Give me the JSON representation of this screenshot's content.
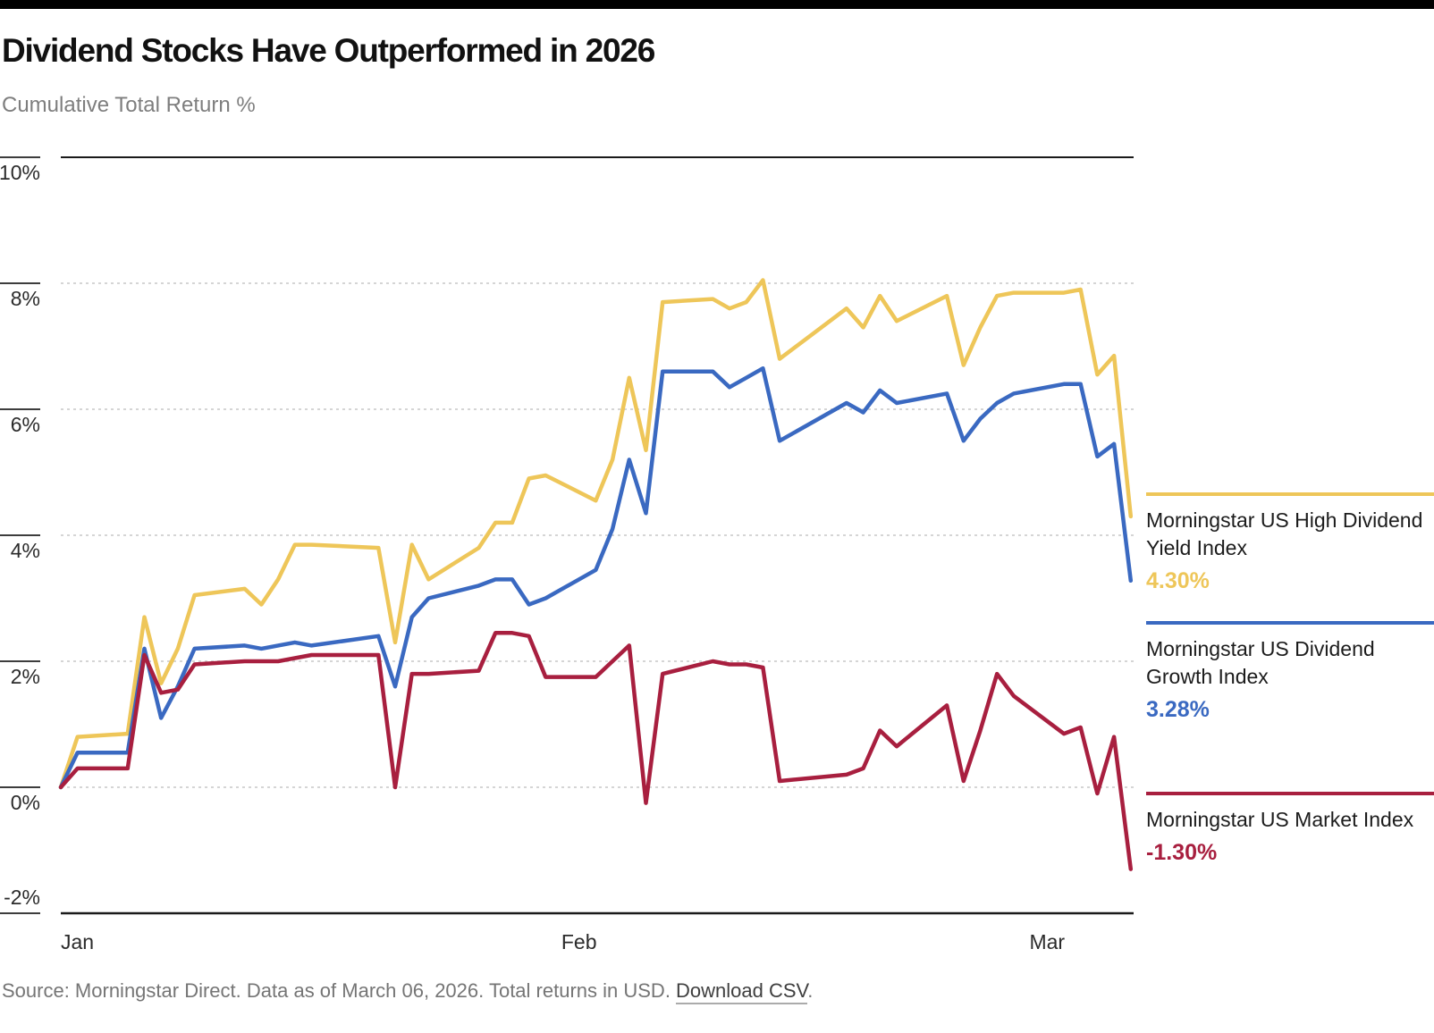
{
  "page": {
    "title": "Dividend Stocks Have Outperformed in 2026",
    "subtitle": "Cumulative Total Return %"
  },
  "chart_data": {
    "type": "line",
    "title": "Dividend Stocks Have Outperformed in 2026",
    "subtitle": "Cumulative Total Return %",
    "ylabel": "Cumulative Total Return %",
    "ylim": [
      -2,
      10
    ],
    "grid": "horizontal dashed at 8,6,4,2,0; solid top border at 10; solid bottom axis at -2",
    "legend_position": "right",
    "y_axis": {
      "max": 10,
      "min": -2,
      "ticks": [
        {
          "label": "10%",
          "value": 10
        },
        {
          "label": "8%",
          "value": 8
        },
        {
          "label": "6%",
          "value": 6
        },
        {
          "label": "4%",
          "value": 4
        },
        {
          "label": "2%",
          "value": 2
        },
        {
          "label": "0%",
          "value": 0
        },
        {
          "label": "-2%",
          "value": -2
        }
      ]
    },
    "x_axis": {
      "ticks": [
        {
          "label": "Jan",
          "day_offset": 0,
          "anchor": "start"
        },
        {
          "label": "Feb",
          "day_offset": 31,
          "anchor": "middle"
        },
        {
          "label": "Mar",
          "day_offset": 59,
          "anchor": "middle"
        }
      ]
    },
    "dates": [
      "Jan 1",
      "Jan 2",
      "Jan 5",
      "Jan 6",
      "Jan 7",
      "Jan 8",
      "Jan 9",
      "Jan 12",
      "Jan 13",
      "Jan 14",
      "Jan 15",
      "Jan 16",
      "Jan 20",
      "Jan 21",
      "Jan 22",
      "Jan 23",
      "Jan 26",
      "Jan 27",
      "Jan 28",
      "Jan 29",
      "Jan 30",
      "Feb 2",
      "Feb 3",
      "Feb 4",
      "Feb 5",
      "Feb 6",
      "Feb 9",
      "Feb 10",
      "Feb 11",
      "Feb 12",
      "Feb 13",
      "Feb 17",
      "Feb 18",
      "Feb 19",
      "Feb 20",
      "Feb 23",
      "Feb 24",
      "Feb 25",
      "Feb 26",
      "Feb 27",
      "Mar 2",
      "Mar 3",
      "Mar 4",
      "Mar 5",
      "Mar 6"
    ],
    "day_offsets": [
      0,
      1,
      4,
      5,
      6,
      7,
      8,
      11,
      12,
      13,
      14,
      15,
      19,
      20,
      21,
      22,
      25,
      26,
      27,
      28,
      29,
      32,
      33,
      34,
      35,
      36,
      39,
      40,
      41,
      42,
      43,
      47,
      48,
      49,
      50,
      53,
      54,
      55,
      56,
      57,
      60,
      61,
      62,
      63,
      64
    ],
    "series": [
      {
        "id": "high-dividend-yield",
        "name": "Morningstar US High Dividend Yield Index",
        "display_value": "4.30%",
        "color": "#EEC659",
        "values": [
          0,
          0.8,
          0.85,
          2.7,
          1.65,
          2.2,
          3.05,
          3.15,
          2.9,
          3.3,
          3.85,
          3.85,
          3.8,
          2.3,
          3.85,
          3.3,
          3.8,
          4.2,
          4.2,
          4.9,
          4.95,
          4.55,
          5.2,
          6.5,
          5.35,
          7.7,
          7.75,
          7.6,
          7.7,
          8.05,
          6.8,
          7.6,
          7.3,
          7.8,
          7.4,
          7.8,
          6.7,
          7.3,
          7.8,
          7.85,
          7.85,
          7.9,
          6.55,
          6.85,
          4.3
        ]
      },
      {
        "id": "dividend-growth",
        "name": "Morningstar US Dividend Growth Index",
        "display_value": "3.28%",
        "color": "#3A69C1",
        "values": [
          0,
          0.55,
          0.55,
          2.2,
          1.1,
          1.6,
          2.2,
          2.25,
          2.2,
          2.25,
          2.3,
          2.25,
          2.4,
          1.6,
          2.7,
          3.0,
          3.2,
          3.3,
          3.3,
          2.9,
          3.0,
          3.45,
          4.1,
          5.2,
          4.35,
          6.6,
          6.6,
          6.35,
          6.5,
          6.65,
          5.5,
          6.1,
          5.95,
          6.3,
          6.1,
          6.25,
          5.5,
          5.85,
          6.1,
          6.25,
          6.4,
          6.4,
          5.25,
          5.45,
          3.28
        ]
      },
      {
        "id": "market-index",
        "name": "Morningstar US Market Index",
        "display_value": "-1.30%",
        "color": "#A81F3F",
        "values": [
          0,
          0.3,
          0.3,
          2.1,
          1.5,
          1.55,
          1.95,
          2.0,
          2.0,
          2.0,
          2.05,
          2.1,
          2.1,
          0.0,
          1.8,
          1.8,
          1.85,
          2.45,
          2.45,
          2.4,
          1.75,
          1.75,
          2.0,
          2.25,
          -0.25,
          1.8,
          2.0,
          1.95,
          1.95,
          1.9,
          0.1,
          0.2,
          0.3,
          0.9,
          0.65,
          1.3,
          0.1,
          0.9,
          1.8,
          1.45,
          0.85,
          0.95,
          -0.1,
          0.8,
          -1.3
        ]
      }
    ]
  },
  "footer": {
    "text_before": "Source: Morningstar Direct. Data as of March 06, 2026. Total returns in USD. ",
    "link_label": "Download CSV",
    "text_after": "."
  }
}
